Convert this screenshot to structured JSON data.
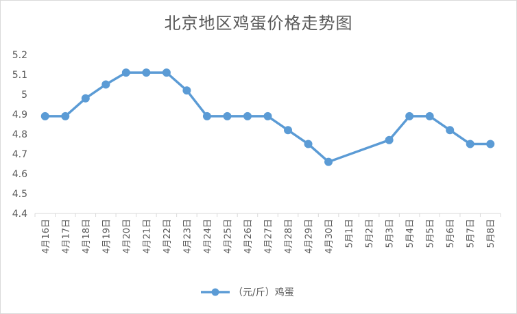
{
  "chart_data": {
    "type": "line",
    "title": "北京地区鸡蛋价格走势图",
    "xlabel": "",
    "ylabel": "",
    "ylim": [
      4.4,
      5.2
    ],
    "yticks": [
      "4.4",
      "4.5",
      "4.6",
      "4.7",
      "4.8",
      "4.9",
      "5",
      "5.1",
      "5.2"
    ],
    "grid": false,
    "legend_position": "bottom",
    "categories": [
      "4月16日",
      "4月17日",
      "4月18日",
      "4月19日",
      "4月20日",
      "4月21日",
      "4月22日",
      "4月23日",
      "4月24日",
      "4月25日",
      "4月26日",
      "4月27日",
      "4月28日",
      "4月29日",
      "4月30日",
      "5月1日",
      "5月2日",
      "5月3日",
      "5月4日",
      "5月5日",
      "5月6日",
      "5月7日",
      "5月8日"
    ],
    "series": [
      {
        "name": "（元/斤）鸡蛋",
        "color": "#5b9bd5",
        "values": [
          4.89,
          4.89,
          4.98,
          5.05,
          5.11,
          5.11,
          5.11,
          5.02,
          4.89,
          4.89,
          4.89,
          4.89,
          4.82,
          4.75,
          4.66,
          null,
          null,
          4.77,
          4.89,
          4.89,
          4.82,
          4.75,
          4.75
        ]
      }
    ]
  }
}
